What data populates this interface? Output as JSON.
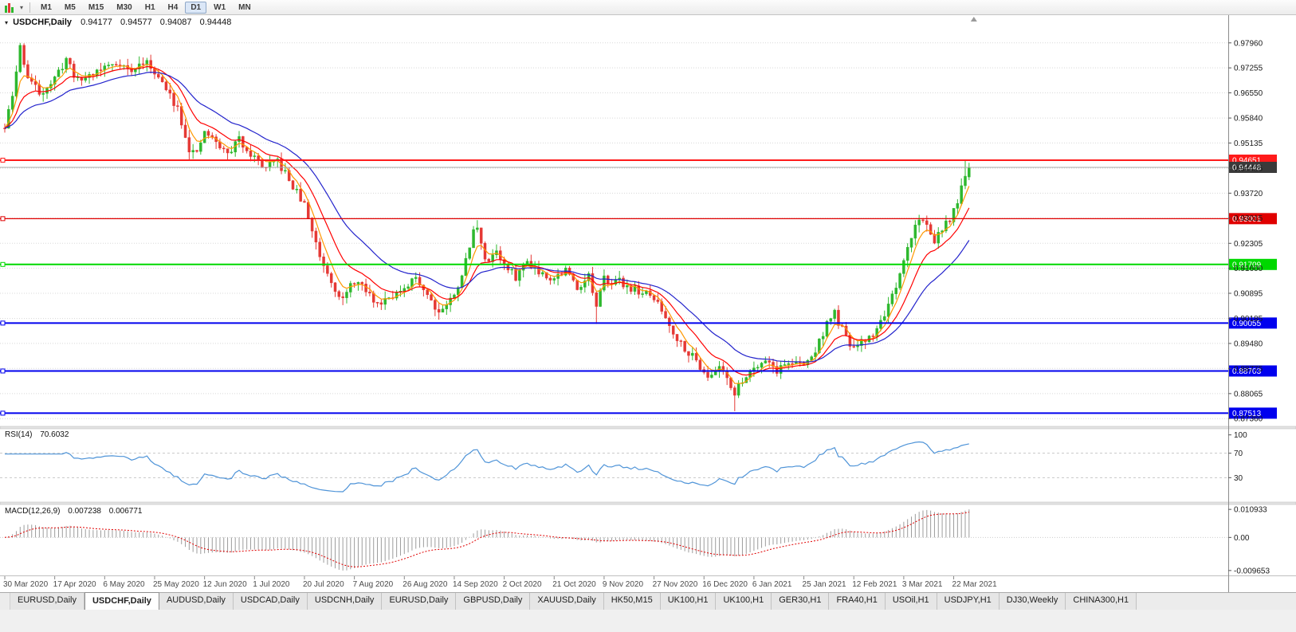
{
  "toolbar": {
    "timeframes": [
      "M1",
      "M5",
      "M15",
      "M30",
      "H1",
      "H4",
      "D1",
      "W1",
      "MN"
    ],
    "active_timeframe": "D1"
  },
  "chart": {
    "title": {
      "symbol": "USDCHF,Daily",
      "open": "0.94177",
      "high": "0.94577",
      "low": "0.94087",
      "close": "0.94448"
    },
    "price_axis_labels": [
      "0.97960",
      "0.97255",
      "0.96550",
      "0.95840",
      "0.95135",
      "0.94425",
      "0.93720",
      "0.93015",
      "0.92305",
      "0.91600",
      "0.90895",
      "0.90185",
      "0.89480",
      "0.88775",
      "0.88065",
      "0.87360"
    ],
    "date_labels": [
      "30 Mar 2020",
      "17 Apr 2020",
      "6 May 2020",
      "25 May 2020",
      "12 Jun 2020",
      "1 Jul 2020",
      "20 Jul 2020",
      "7 Aug 2020",
      "26 Aug 2020",
      "14 Sep 2020",
      "2 Oct 2020",
      "21 Oct 2020",
      "9 Nov 2020",
      "27 Nov 2020",
      "16 Dec 2020",
      "6 Jan 2021",
      "25 Jan 2021",
      "12 Feb 2021",
      "3 Mar 2021",
      "22 Mar 2021"
    ],
    "hlines": [
      {
        "price": 0.94651,
        "label": "0.94651",
        "color": "#ff1a1a",
        "width": 2
      },
      {
        "price": 0.93001,
        "label": "0.93001",
        "color": "#e00000",
        "width": 1.3
      },
      {
        "price": 0.91709,
        "label": "0.91709",
        "color": "#00d800",
        "width": 2
      },
      {
        "price": 0.90055,
        "label": "0.90055",
        "color": "#0000ee",
        "width": 2
      },
      {
        "price": 0.88703,
        "label": "0.88703",
        "color": "#0000ee",
        "width": 2
      },
      {
        "price": 0.87513,
        "label": "0.87513",
        "color": "#0000ee",
        "width": 2
      }
    ],
    "current_price": {
      "value": 0.94448,
      "label": "0.94448"
    },
    "colors": {
      "bull": "#2eb82e",
      "bear": "#e53935",
      "grid": "#d8d8d8",
      "axis_text": "#1a1a1a",
      "date_text": "#4a4a4a",
      "current_price_line": "#a8a8a8",
      "current_price_tag": "#3a3a3a"
    }
  },
  "rsi": {
    "label": "RSI(14)",
    "value": "70.6032",
    "period": 14,
    "line_color": "#4f94d8",
    "axis_labels": [
      "100",
      "70",
      "30"
    ],
    "axis_values": [
      100,
      70,
      30
    ],
    "level_lines": [
      70,
      30
    ]
  },
  "macd": {
    "label": "MACD(12,26,9)",
    "main_value": "0.007238",
    "signal_value": "0.006771",
    "params": [
      12,
      26,
      9
    ],
    "axis_labels": [
      "0.010933",
      "0.00",
      "-0.009653"
    ],
    "bar_color": "#9c9c9c",
    "signal_color": "#e00000"
  },
  "tabs": {
    "items": [
      "EURUSD,Daily",
      "USDCHF,Daily",
      "AUDUSD,Daily",
      "USDCAD,Daily",
      "USDCNH,Daily",
      "EURUSD,Daily",
      "GBPUSD,Daily",
      "XAUUSD,Daily",
      "HK50,M15",
      "UK100,H1",
      "UK100,H1",
      "GER30,H1",
      "FRA40,H1",
      "USOil,H1",
      "USDJPY,H1",
      "DJ30,Weekly",
      "CHINA300,H1"
    ],
    "active_index": 1
  },
  "chart_data": {
    "type": "candlestick",
    "symbol": "USDCHF",
    "timeframe": "Daily",
    "candle_count": 252,
    "seed": 11,
    "y_range": [
      0.8714,
      0.9872
    ],
    "x_tick_days": 13,
    "last_candle": {
      "open": 0.94177,
      "high": 0.94577,
      "low": 0.94087,
      "close": 0.94448
    },
    "price_anchors": [
      [
        0,
        0.9555
      ],
      [
        2,
        0.9645
      ],
      [
        4,
        0.9785
      ],
      [
        6,
        0.97
      ],
      [
        9,
        0.9655
      ],
      [
        13,
        0.9692
      ],
      [
        16,
        0.9752
      ],
      [
        19,
        0.9688
      ],
      [
        22,
        0.9706
      ],
      [
        26,
        0.9728
      ],
      [
        30,
        0.9742
      ],
      [
        33,
        0.9712
      ],
      [
        36,
        0.9744
      ],
      [
        39,
        0.9718
      ],
      [
        42,
        0.9662
      ],
      [
        45,
        0.9615
      ],
      [
        48,
        0.9498
      ],
      [
        50,
        0.9478
      ],
      [
        52,
        0.9546
      ],
      [
        55,
        0.9515
      ],
      [
        58,
        0.9482
      ],
      [
        61,
        0.9524
      ],
      [
        65,
        0.9472
      ],
      [
        68,
        0.9442
      ],
      [
        71,
        0.9462
      ],
      [
        74,
        0.9408
      ],
      [
        78,
        0.9338
      ],
      [
        80,
        0.9268
      ],
      [
        82,
        0.9196
      ],
      [
        84,
        0.915
      ],
      [
        86,
        0.9106
      ],
      [
        88,
        0.907
      ],
      [
        91,
        0.9126
      ],
      [
        94,
        0.9096
      ],
      [
        97,
        0.9058
      ],
      [
        100,
        0.9086
      ],
      [
        104,
        0.9092
      ],
      [
        107,
        0.9136
      ],
      [
        110,
        0.9088
      ],
      [
        113,
        0.9038
      ],
      [
        117,
        0.9082
      ],
      [
        120,
        0.918
      ],
      [
        122,
        0.9262
      ],
      [
        123,
        0.9285
      ],
      [
        125,
        0.9176
      ],
      [
        128,
        0.9212
      ],
      [
        130,
        0.9166
      ],
      [
        133,
        0.9136
      ],
      [
        136,
        0.9182
      ],
      [
        139,
        0.9152
      ],
      [
        143,
        0.9132
      ],
      [
        146,
        0.9156
      ],
      [
        149,
        0.9106
      ],
      [
        152,
        0.914
      ],
      [
        154,
        0.9046
      ],
      [
        156,
        0.913
      ],
      [
        160,
        0.9122
      ],
      [
        164,
        0.91
      ],
      [
        169,
        0.9076
      ],
      [
        172,
        0.9022
      ],
      [
        175,
        0.8962
      ],
      [
        178,
        0.8925
      ],
      [
        182,
        0.8872
      ],
      [
        184,
        0.885
      ],
      [
        186,
        0.8886
      ],
      [
        188,
        0.8858
      ],
      [
        190,
        0.8802
      ],
      [
        192,
        0.8846
      ],
      [
        195,
        0.8882
      ],
      [
        198,
        0.8906
      ],
      [
        201,
        0.8872
      ],
      [
        204,
        0.8896
      ],
      [
        208,
        0.8886
      ],
      [
        211,
        0.8926
      ],
      [
        214,
        0.9006
      ],
      [
        216,
        0.9032
      ],
      [
        219,
        0.8962
      ],
      [
        221,
        0.8932
      ],
      [
        224,
        0.8956
      ],
      [
        227,
        0.8986
      ],
      [
        230,
        0.9058
      ],
      [
        232,
        0.9094
      ],
      [
        234,
        0.9178
      ],
      [
        236,
        0.9252
      ],
      [
        238,
        0.9304
      ],
      [
        240,
        0.9278
      ],
      [
        242,
        0.9242
      ],
      [
        244,
        0.9268
      ],
      [
        246,
        0.9296
      ],
      [
        248,
        0.9352
      ],
      [
        250,
        0.9412
      ],
      [
        251,
        0.94448
      ]
    ],
    "overrides": [
      {
        "day": 4,
        "high": 0.9796
      },
      {
        "day": 16,
        "high": 0.9757
      },
      {
        "day": 36,
        "high": 0.9755
      },
      {
        "day": 48,
        "low": 0.9465
      },
      {
        "day": 58,
        "low": 0.9466
      },
      {
        "day": 88,
        "low": 0.9056
      },
      {
        "day": 97,
        "low": 0.905
      },
      {
        "day": 113,
        "low": 0.9015
      },
      {
        "day": 123,
        "high": 0.9296
      },
      {
        "day": 154,
        "low": 0.9003
      },
      {
        "day": 190,
        "low": 0.8757
      },
      {
        "day": 216,
        "high": 0.9046
      },
      {
        "day": 238,
        "high": 0.9311
      },
      {
        "day": 250,
        "high": 0.94651
      },
      {
        "day": 251,
        "open": 0.94177,
        "high": 0.94577,
        "low": 0.94087,
        "close": 0.94448
      }
    ],
    "moving_averages": [
      {
        "period": 5,
        "color": "#ff9800",
        "name": "fast-ma-orange"
      },
      {
        "period": 12,
        "color": "#ff0000",
        "name": "mid-ma-red"
      },
      {
        "period": 26,
        "color": "#2323cc",
        "name": "slow-ma-blue"
      }
    ]
  }
}
